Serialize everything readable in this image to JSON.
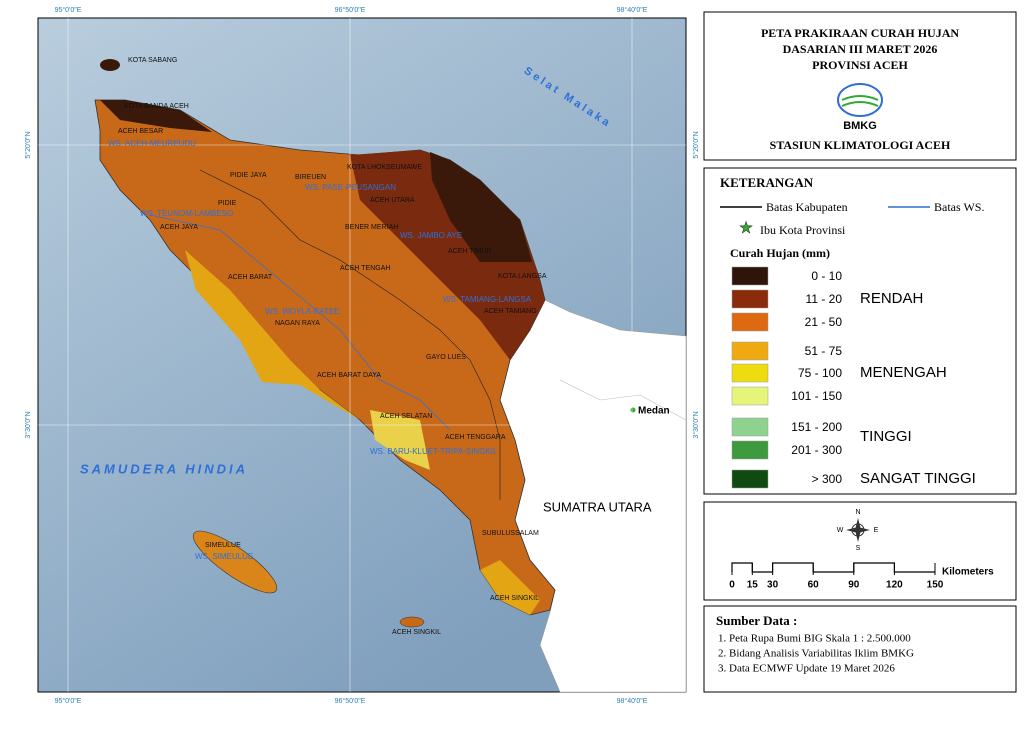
{
  "header": {
    "title_lines": [
      "PETA PRAKIRAAN CURAH HUJAN",
      "DASARIAN III MARET 2026",
      "PROVINSI ACEH"
    ],
    "logo_text": "BMKG",
    "station": "STASIUN KLIMATOLOGI ACEH"
  },
  "legend": {
    "title": "KETERANGAN",
    "lines": [
      {
        "label": "Batas Kabupaten",
        "color": "#000000"
      },
      {
        "label": "Batas WS.",
        "color": "#2f6fd6"
      }
    ],
    "capital": "Ibu Kota Provinsi",
    "rain_title": "Curah Hujan (mm)",
    "classes": [
      {
        "range": "0 - 10",
        "color": "#2e1409"
      },
      {
        "range": "11 - 20",
        "color": "#8a2c0c"
      },
      {
        "range": "21 - 50",
        "color": "#dd6a10"
      },
      {
        "range": "51 - 75",
        "color": "#eeaa10"
      },
      {
        "range": "75 - 100",
        "color": "#eedc10"
      },
      {
        "range": "101 - 150",
        "color": "#e6f57a"
      },
      {
        "range": "151 - 200",
        "color": "#8fd18f"
      },
      {
        "range": "201 - 300",
        "color": "#3d9a3d"
      },
      {
        "range": "> 300",
        "color": "#0f4a12"
      }
    ],
    "groups": [
      "RENDAH",
      "MENENGAH",
      "TINGGI",
      "SANGAT TINGGI"
    ]
  },
  "scale": {
    "compass": {
      "n": "N",
      "s": "S",
      "e": "E",
      "w": "W"
    },
    "ticks": [
      0,
      15,
      30,
      60,
      90,
      120,
      150
    ],
    "unit": "Kilometers"
  },
  "sources": {
    "title": "Sumber Data :",
    "items": [
      "1. Peta Rupa Bumi BIG Skala 1 : 2.500.000",
      "2. Bidang Analisis Variabilitas Iklim BMKG",
      "3. Data ECMWF Update 19 Maret 2026"
    ]
  },
  "map": {
    "graticule": {
      "lon": [
        "95°0'0\"E",
        "96°50'0\"E",
        "98°40'0\"E"
      ],
      "lat": [
        "5°20'0\"N",
        "3°30'0\"N"
      ]
    },
    "labels": [
      "KOTA SABANG",
      "KOTA BANDA ACEH",
      "ACEH BESAR",
      "WS. ACEH-MEUREUDU",
      "PIDIE JAYA",
      "BIREUEN",
      "KOTA LHOKSEUMAWE",
      "WS. PASE-PEUSANGAN",
      "PIDIE",
      "ACEH UTARA",
      "WS. TEUNOM-LAMBESO",
      "ACEH JAYA",
      "BENER MERIAH",
      "WS. JAMBO AYE",
      "ACEH TIMUR",
      "ACEH BARAT",
      "ACEH TENGAH",
      "KOTA LANGSA",
      "WS. TAMIANG-LANGSA",
      "ACEH TAMIANG",
      "WS. WOYLA-BATEE",
      "NAGAN RAYA",
      "GAYO LUES",
      "ACEH BARAT DAYA",
      "ACEH SELATAN",
      "ACEH TENGGARA",
      "WS. BARU-KLUET-TRIPA-SINGKIL",
      "SIMEULUE",
      "WS. SIMEULUE",
      "SUBULUSSALAM",
      "ACEH SINGKIL",
      "ACEH SINGKIL"
    ],
    "seas": [
      "Selat Malaka",
      "SAMUDERA HINDIA"
    ],
    "neighbor": "SUMATRA UTARA",
    "city": "Medan"
  }
}
